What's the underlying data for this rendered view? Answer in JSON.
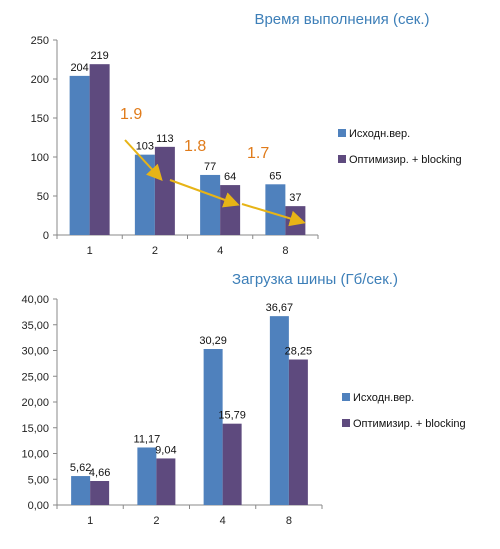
{
  "chart_data": [
    {
      "type": "bar",
      "title": "Время выполнения (сек.)",
      "categories": [
        "1",
        "2",
        "4",
        "8"
      ],
      "series": [
        {
          "name": "Исходн.вер.",
          "values": [
            204,
            103,
            77,
            65
          ],
          "labels": [
            "204",
            "103",
            "77",
            "65"
          ],
          "color": "#4f81bd"
        },
        {
          "name": "Оптимизир. + blocking",
          "values": [
            219,
            113,
            64,
            37
          ],
          "labels": [
            "219",
            "113",
            "64",
            "37"
          ],
          "color": "#5e4a7e"
        }
      ],
      "ylim": [
        0,
        250
      ],
      "yticks": [
        "0",
        "50",
        "100",
        "150",
        "200",
        "250"
      ],
      "annotations": [
        "1.9",
        "1.8",
        "1.7"
      ],
      "legend_position": "right"
    },
    {
      "type": "bar",
      "title": "Загрузка шины (Гб/сек.)",
      "categories": [
        "1",
        "2",
        "4",
        "8"
      ],
      "series": [
        {
          "name": "Исходн.вер.",
          "values": [
            5.62,
            11.17,
            30.29,
            36.67
          ],
          "labels": [
            "5,62",
            "11,17",
            "30,29",
            "36,67"
          ],
          "color": "#4f81bd"
        },
        {
          "name": "Оптимизир. + blocking",
          "values": [
            4.66,
            9.04,
            15.79,
            28.25
          ],
          "labels": [
            "4,66",
            "9,04",
            "15,79",
            "28,25"
          ],
          "color": "#5e4a7e"
        }
      ],
      "ylim": [
        0,
        40
      ],
      "yticks": [
        "0,00",
        "5,00",
        "10,00",
        "15,00",
        "20,00",
        "25,00",
        "30,00",
        "35,00",
        "40,00"
      ],
      "legend_position": "right"
    }
  ]
}
